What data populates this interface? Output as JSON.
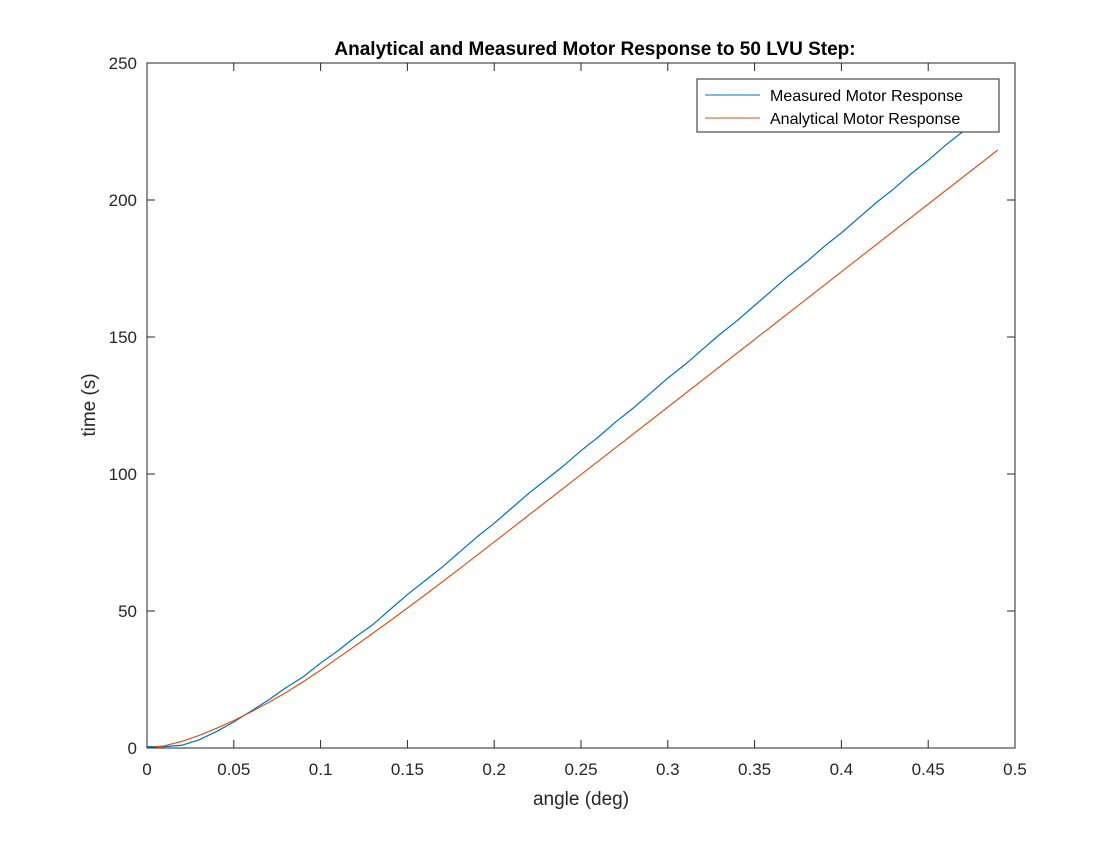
{
  "chart_data": {
    "type": "line",
    "title": "Analytical and Measured Motor Response to 50 LVU Step:",
    "xlabel": "angle (deg)",
    "ylabel": "time (s)",
    "xlim": [
      0,
      0.5
    ],
    "ylim": [
      0,
      250
    ],
    "x_ticks": [
      "0",
      "0.05",
      "0.1",
      "0.15",
      "0.2",
      "0.25",
      "0.3",
      "0.35",
      "0.4",
      "0.45",
      "0.5"
    ],
    "y_ticks": [
      "0",
      "50",
      "100",
      "150",
      "200",
      "250"
    ],
    "grid": false,
    "legend_position": "top-right",
    "series": [
      {
        "name": "Measured Motor Response",
        "color": "#0072BD",
        "x": [
          0,
          0.01,
          0.02,
          0.03,
          0.04,
          0.05,
          0.06,
          0.07,
          0.08,
          0.09,
          0.1,
          0.11,
          0.12,
          0.13,
          0.14,
          0.15,
          0.16,
          0.17,
          0.18,
          0.19,
          0.2,
          0.21,
          0.22,
          0.23,
          0.24,
          0.25,
          0.26,
          0.27,
          0.28,
          0.29,
          0.3,
          0.31,
          0.32,
          0.33,
          0.34,
          0.35,
          0.36,
          0.37,
          0.38,
          0.39,
          0.4,
          0.41,
          0.42,
          0.43,
          0.44,
          0.45,
          0.46,
          0.47,
          0.48
        ],
        "y": [
          0.5,
          0.5,
          1,
          3,
          6,
          9.5,
          13.5,
          17.5,
          22,
          26,
          31,
          35.5,
          40.5,
          45,
          50.5,
          56,
          61,
          66,
          71.5,
          77,
          82,
          87.5,
          93,
          98,
          103,
          108.5,
          113.5,
          119,
          124,
          129.5,
          135,
          140,
          145.5,
          151,
          156,
          161.5,
          167,
          172.5,
          177.5,
          183,
          188,
          193.5,
          199,
          204,
          209.5,
          214.5,
          220,
          225,
          229
        ]
      },
      {
        "name": "Analytical Motor Response",
        "color": "#D95319",
        "x": [
          0,
          0.01,
          0.02,
          0.03,
          0.04,
          0.05,
          0.06,
          0.07,
          0.08,
          0.09,
          0.1,
          0.12,
          0.14,
          0.16,
          0.18,
          0.2,
          0.25,
          0.3,
          0.35,
          0.4,
          0.45,
          0.49
        ],
        "y": [
          0,
          0.8,
          2.4,
          4.6,
          7.2,
          10,
          13.2,
          16.6,
          20.2,
          24.2,
          28.4,
          37.3,
          46.4,
          55.8,
          65.4,
          75.2,
          99.8,
          124.4,
          149.1,
          173.8,
          198.5,
          218.2
        ]
      }
    ]
  }
}
